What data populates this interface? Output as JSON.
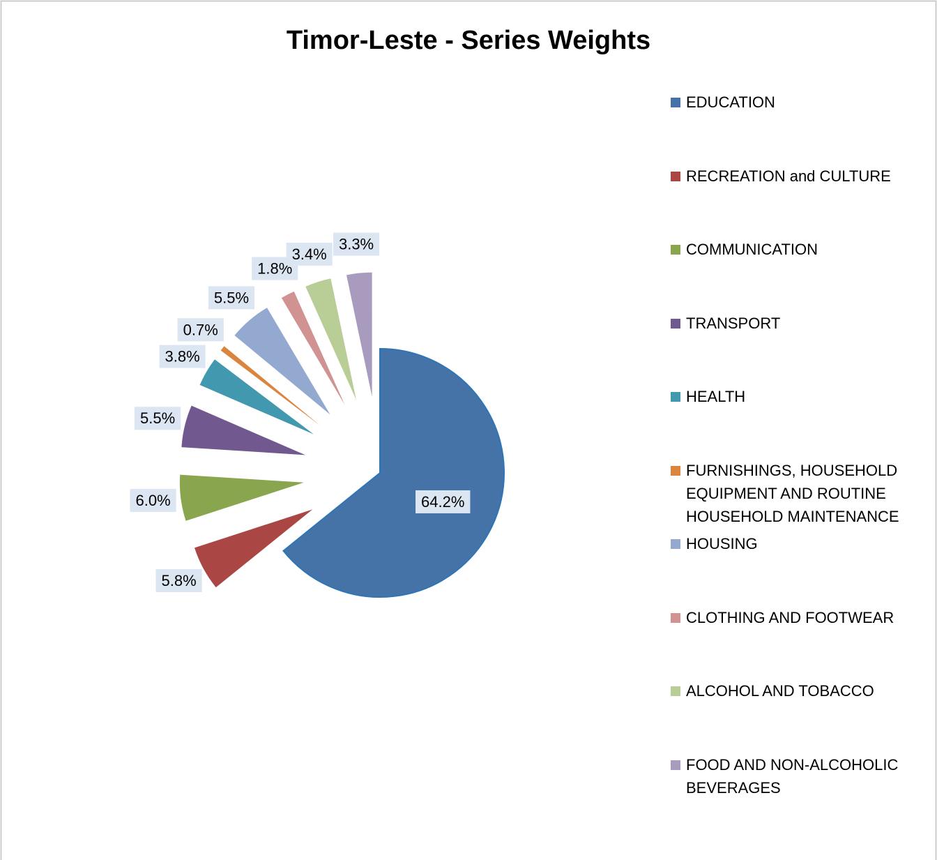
{
  "chart_data": {
    "type": "pie",
    "title": "Timor-Leste - Series Weights",
    "categories": [
      "EDUCATION",
      "RECREATION and CULTURE",
      "COMMUNICATION",
      "TRANSPORT",
      "HEALTH",
      "FURNISHINGS, HOUSEHOLD EQUIPMENT AND ROUTINE HOUSEHOLD MAINTENANCE",
      "HOUSING",
      "CLOTHING AND FOOTWEAR",
      "ALCOHOL AND TOBACCO",
      "FOOD AND NON-ALCOHOLIC BEVERAGES"
    ],
    "values": [
      64.2,
      5.8,
      6.0,
      5.5,
      3.8,
      0.7,
      5.5,
      1.8,
      3.4,
      3.3
    ],
    "value_labels": [
      "64.2%",
      "5.8%",
      "6.0%",
      "5.5%",
      "3.8%",
      "0.7%",
      "5.5%",
      "1.8%",
      "3.4%",
      "3.3%"
    ],
    "colors": [
      "#4573a7",
      "#aa4744",
      "#89a54e",
      "#71588f",
      "#4298af",
      "#db843d",
      "#93a9d0",
      "#d09392",
      "#b9cd97",
      "#a99bbd"
    ],
    "legend": "right"
  }
}
